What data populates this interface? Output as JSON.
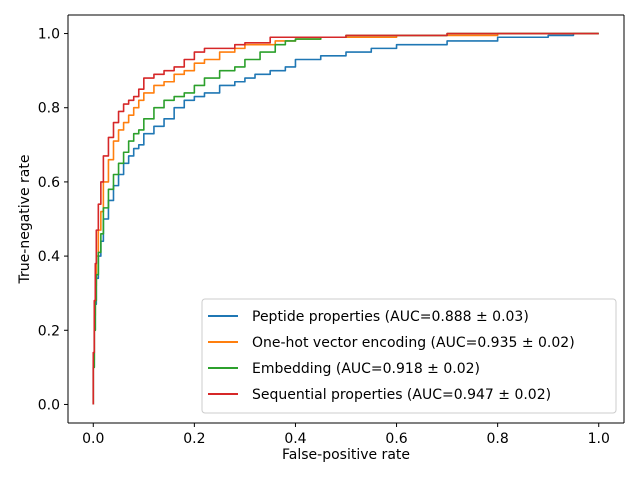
{
  "chart_data": {
    "type": "line",
    "title": "",
    "xlabel": "False-positive rate",
    "ylabel": "True-negative rate",
    "xlim": [
      -0.05,
      1.05
    ],
    "ylim": [
      -0.05,
      1.05
    ],
    "xticks": [
      "0.0",
      "0.2",
      "0.4",
      "0.6",
      "0.8",
      "1.0"
    ],
    "yticks": [
      "0.0",
      "0.2",
      "0.4",
      "0.6",
      "0.8",
      "1.0"
    ],
    "grid": false,
    "legend_position": "lower-right",
    "series": [
      {
        "name": "Peptide properties (AUC=0.888 ± 0.03)",
        "color": "#1f77b4",
        "x": [
          0,
          0.002,
          0.004,
          0.006,
          0.01,
          0.015,
          0.02,
          0.03,
          0.04,
          0.05,
          0.06,
          0.07,
          0.08,
          0.09,
          0.1,
          0.12,
          0.14,
          0.16,
          0.18,
          0.2,
          0.22,
          0.25,
          0.28,
          0.3,
          0.32,
          0.35,
          0.38,
          0.4,
          0.45,
          0.5,
          0.55,
          0.6,
          0.65,
          0.7,
          0.75,
          0.8,
          0.85,
          0.9,
          0.95,
          1.0
        ],
        "y": [
          0,
          0.1,
          0.2,
          0.27,
          0.34,
          0.4,
          0.44,
          0.5,
          0.55,
          0.59,
          0.62,
          0.65,
          0.67,
          0.69,
          0.7,
          0.73,
          0.75,
          0.77,
          0.8,
          0.82,
          0.83,
          0.84,
          0.86,
          0.87,
          0.88,
          0.89,
          0.9,
          0.91,
          0.93,
          0.94,
          0.95,
          0.96,
          0.97,
          0.97,
          0.98,
          0.98,
          0.99,
          0.99,
          0.995,
          1.0
        ]
      },
      {
        "name": "One-hot vector encoding (AUC=0.935 ± 0.02)",
        "color": "#ff7f0e",
        "x": [
          0,
          0.002,
          0.004,
          0.006,
          0.01,
          0.015,
          0.02,
          0.03,
          0.04,
          0.05,
          0.06,
          0.07,
          0.08,
          0.09,
          0.1,
          0.12,
          0.14,
          0.16,
          0.18,
          0.2,
          0.22,
          0.25,
          0.28,
          0.3,
          0.33,
          0.36,
          0.4,
          0.45,
          0.5,
          0.6,
          0.7,
          0.8,
          0.9,
          1.0
        ],
        "y": [
          0,
          0.12,
          0.24,
          0.32,
          0.4,
          0.47,
          0.52,
          0.6,
          0.66,
          0.71,
          0.74,
          0.76,
          0.78,
          0.8,
          0.82,
          0.84,
          0.86,
          0.87,
          0.89,
          0.9,
          0.92,
          0.93,
          0.95,
          0.96,
          0.97,
          0.97,
          0.98,
          0.985,
          0.99,
          0.99,
          0.995,
          0.995,
          1.0,
          1.0
        ]
      },
      {
        "name": "Embedding (AUC=0.918 ± 0.02)",
        "color": "#2ca02c",
        "x": [
          0,
          0.002,
          0.004,
          0.006,
          0.01,
          0.015,
          0.02,
          0.03,
          0.04,
          0.05,
          0.06,
          0.07,
          0.08,
          0.09,
          0.1,
          0.12,
          0.14,
          0.16,
          0.18,
          0.2,
          0.22,
          0.25,
          0.28,
          0.3,
          0.33,
          0.36,
          0.38,
          0.4,
          0.45,
          0.5,
          0.6,
          0.7,
          0.8,
          0.9,
          1.0
        ],
        "y": [
          0,
          0.1,
          0.2,
          0.28,
          0.35,
          0.41,
          0.46,
          0.53,
          0.58,
          0.62,
          0.65,
          0.68,
          0.71,
          0.73,
          0.74,
          0.77,
          0.8,
          0.82,
          0.83,
          0.84,
          0.86,
          0.88,
          0.9,
          0.91,
          0.93,
          0.95,
          0.97,
          0.98,
          0.985,
          0.99,
          0.995,
          0.995,
          1.0,
          1.0,
          1.0
        ]
      },
      {
        "name": "Sequential properties (AUC=0.947 ± 0.02)",
        "color": "#d62728",
        "x": [
          0,
          0.002,
          0.004,
          0.006,
          0.01,
          0.015,
          0.02,
          0.03,
          0.04,
          0.05,
          0.06,
          0.07,
          0.08,
          0.09,
          0.1,
          0.12,
          0.14,
          0.16,
          0.18,
          0.2,
          0.22,
          0.25,
          0.28,
          0.3,
          0.35,
          0.4,
          0.5,
          0.6,
          0.7,
          0.8,
          0.9,
          1.0
        ],
        "y": [
          0,
          0.14,
          0.28,
          0.38,
          0.47,
          0.54,
          0.6,
          0.67,
          0.72,
          0.76,
          0.79,
          0.81,
          0.82,
          0.83,
          0.85,
          0.88,
          0.89,
          0.9,
          0.91,
          0.93,
          0.95,
          0.96,
          0.96,
          0.97,
          0.975,
          0.99,
          0.99,
          0.995,
          0.995,
          1.0,
          1.0,
          1.0
        ]
      }
    ]
  }
}
